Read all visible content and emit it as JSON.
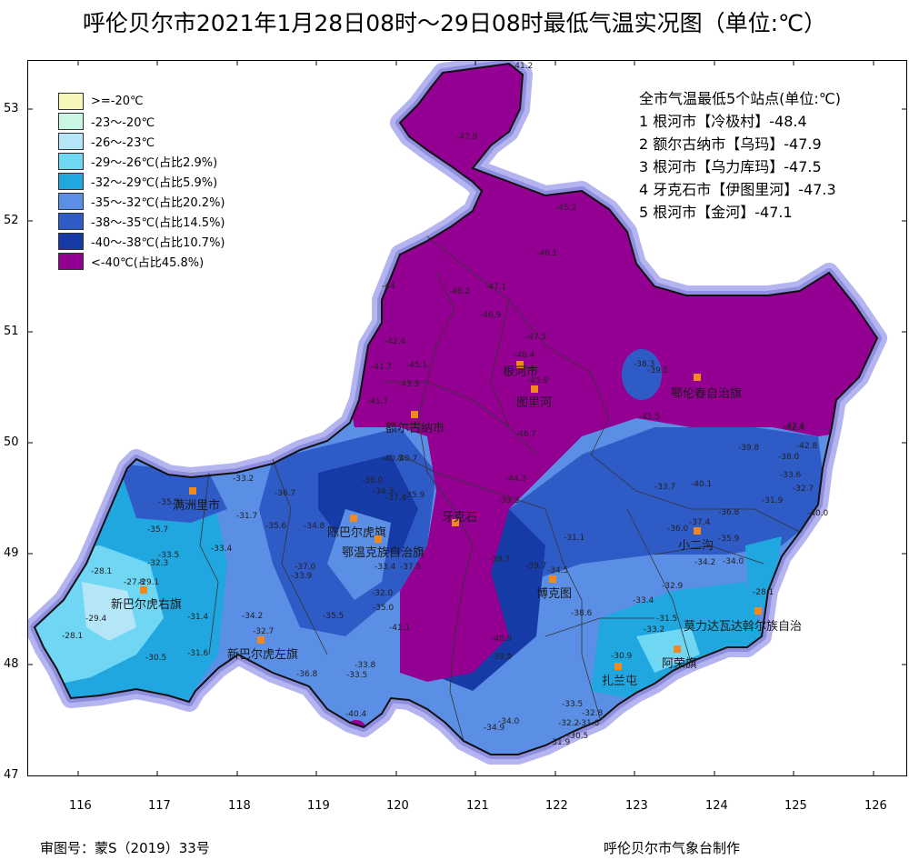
{
  "title": "呼伦贝尔市2021年1月28日08时～29日08时最低气温实况图（单位:℃）",
  "legend": [
    {
      "label": ">=-20℃",
      "color": "#f6f6b6"
    },
    {
      "label": "-23～-20℃",
      "color": "#c9f7e4"
    },
    {
      "label": "-26～-23℃",
      "color": "#b5e6f7"
    },
    {
      "label": "-29～-26℃(占比2.9%)",
      "color": "#6fd6f4"
    },
    {
      "label": "-32～-29℃(占比5.9%)",
      "color": "#21a7e0"
    },
    {
      "label": "-35～-32℃(占比20.2%)",
      "color": "#5b8fe6"
    },
    {
      "label": "-38～-35℃(占比14.5%)",
      "color": "#2f5bc7"
    },
    {
      "label": "-40～-38℃(占比10.7%)",
      "color": "#173ba6"
    },
    {
      "label": "<-40℃(占比45.8%)",
      "color": "#940092"
    }
  ],
  "stations_title": "全市气温最低5个站点(单位:℃)",
  "stations": [
    "1 根河市【冷极村】-48.4",
    "2 额尔古纳市【乌玛】-47.9",
    "3 根河市【乌力库玛】-47.5",
    "4 牙克石市【伊图里河】-47.3",
    "5 根河市【金河】-47.1"
  ],
  "x_ticks": [
    "116",
    "117",
    "118",
    "119",
    "120",
    "121",
    "122",
    "123",
    "124",
    "125",
    "126"
  ],
  "y_ticks": [
    "53",
    "52",
    "51",
    "50",
    "49",
    "48",
    "47"
  ],
  "cities": [
    {
      "name": "根河市"
    },
    {
      "name": "图里河"
    },
    {
      "name": "鄂伦春自治旗"
    },
    {
      "name": "额尔古纳市"
    },
    {
      "name": "满洲里市"
    },
    {
      "name": "陈巴尔虎旗"
    },
    {
      "name": "鄂温克族自治旗"
    },
    {
      "name": "牙克石"
    },
    {
      "name": "小二沟"
    },
    {
      "name": "博克图"
    },
    {
      "name": "新巴尔虎右旗"
    },
    {
      "name": "新巴尔虎左旗"
    },
    {
      "name": "莫力达瓦达斡尔族自治"
    },
    {
      "name": "阿荣旗"
    },
    {
      "name": "扎兰屯"
    }
  ],
  "values": [
    "-41.2",
    "-47.9",
    "-45.2",
    "-46.1",
    "-46.2",
    "-47.1",
    "-48.4",
    "-46.9",
    "-44",
    "-42.4",
    "-41.7",
    "-45.1",
    "-47.5",
    "-45.9",
    "-41.5",
    "-42.4",
    "-38.3",
    "-39.5",
    "-44.3",
    "-46.7",
    "-39.3",
    "-33.2",
    "-36.7",
    "-35.5",
    "-31.7",
    "-35.6",
    "-34.8",
    "-35.7",
    "-33.5",
    "-32.3",
    "-33.4",
    "-28.1",
    "-27.8",
    "-29.1",
    "-29.4",
    "-28.1",
    "-31.4",
    "-30.5",
    "-31.6",
    "-32.7",
    "-34.2",
    "-33.8",
    "-36.8",
    "-35.5",
    "-33.5",
    "-32.0",
    "-35.0",
    "-41.1",
    "-38.7",
    "-39.7",
    "-34.5",
    "-31.1",
    "-33.7",
    "-40.1",
    "-37.4",
    "-36.0",
    "-36.8",
    "-35.9",
    "-34.2",
    "-34.0",
    "-32.9",
    "-33.4",
    "-38.6",
    "-31.5",
    "-33.2",
    "-30.9",
    "-32.8",
    "-34.0",
    "-32.2",
    "-31.6",
    "-31.9",
    "-33.5",
    "-34.9",
    "-40.4",
    "-40.9",
    "-39.9",
    "-30.5",
    "-28.1",
    "-39.8",
    "-38.0",
    "-33.6",
    "-32.7",
    "-40.0",
    "-31.9",
    "-42.4",
    "-42.8",
    "-37.0",
    "-33.9",
    "-41.7",
    "-43.3",
    "-40.5",
    "-40.7",
    "-35.9",
    "-37.5",
    "-33.4",
    "-37.4",
    "-34.3",
    "-36.0"
  ],
  "footer_left": "审图号：蒙S（2019）33号",
  "footer_right": "呼伦贝尔市气象台制作"
}
